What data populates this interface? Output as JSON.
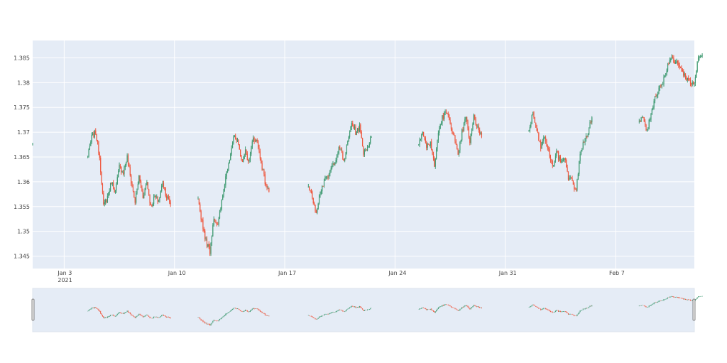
{
  "chart_data": {
    "type": "candlestick",
    "title": "",
    "xlabel": "",
    "ylabel": "",
    "ylim": [
      1.3425,
      1.3885
    ],
    "x_range": [
      "2021-01-01",
      "2021-02-12"
    ],
    "y_ticks": [
      "1.345",
      "1.35",
      "1.355",
      "1.36",
      "1.365",
      "1.37",
      "1.375",
      "1.38",
      "1.385"
    ],
    "y_tick_values": [
      1.345,
      1.35,
      1.355,
      1.36,
      1.365,
      1.37,
      1.375,
      1.38,
      1.385
    ],
    "x_ticks": [
      {
        "date": "2021-01-03",
        "label": "Jan 3",
        "sublabel": "2021"
      },
      {
        "date": "2021-01-10",
        "label": "Jan 10",
        "sublabel": ""
      },
      {
        "date": "2021-01-17",
        "label": "Jan 17",
        "sublabel": ""
      },
      {
        "date": "2021-01-24",
        "label": "Jan 24",
        "sublabel": ""
      },
      {
        "date": "2021-01-31",
        "label": "Jan 31",
        "sublabel": ""
      },
      {
        "date": "2021-02-07",
        "label": "Feb 7",
        "sublabel": ""
      }
    ],
    "increasing_color": "#3D9970",
    "decreasing_color": "#EF553B",
    "plot_bg": "#E5ECF6",
    "grid": true,
    "rangeslider": true,
    "series": [
      {
        "segment": 0,
        "points": [
          [
            "2021-01-01 00:00",
            1.3675
          ]
        ]
      },
      {
        "segment": 1,
        "points": [
          [
            "2021-01-04 12:00",
            1.365
          ],
          [
            "2021-01-04 18:00",
            1.369
          ],
          [
            "2021-01-05 00:00",
            1.37
          ],
          [
            "2021-01-05 06:00",
            1.365
          ],
          [
            "2021-01-05 12:00",
            1.355
          ],
          [
            "2021-01-05 18:00",
            1.357
          ],
          [
            "2021-01-06 00:00",
            1.36
          ],
          [
            "2021-01-06 06:00",
            1.358
          ],
          [
            "2021-01-06 12:00",
            1.363
          ],
          [
            "2021-01-06 18:00",
            1.362
          ],
          [
            "2021-01-07 00:00",
            1.365
          ],
          [
            "2021-01-07 06:00",
            1.36
          ],
          [
            "2021-01-07 12:00",
            1.356
          ],
          [
            "2021-01-07 18:00",
            1.361
          ],
          [
            "2021-01-08 00:00",
            1.357
          ],
          [
            "2021-01-08 06:00",
            1.36
          ],
          [
            "2021-01-08 12:00",
            1.355
          ],
          [
            "2021-01-08 18:00",
            1.357
          ],
          [
            "2021-01-09 00:00",
            1.356
          ],
          [
            "2021-01-09 06:00",
            1.36
          ],
          [
            "2021-01-09 12:00",
            1.357
          ],
          [
            "2021-01-09 18:00",
            1.3555
          ]
        ]
      },
      {
        "segment": 2,
        "points": [
          [
            "2021-01-11 12:00",
            1.356
          ],
          [
            "2021-01-11 18:00",
            1.352
          ],
          [
            "2021-01-12 00:00",
            1.348
          ],
          [
            "2021-01-12 06:00",
            1.346
          ],
          [
            "2021-01-12 12:00",
            1.353
          ],
          [
            "2021-01-12 18:00",
            1.351
          ],
          [
            "2021-01-13 00:00",
            1.356
          ],
          [
            "2021-01-13 06:00",
            1.361
          ],
          [
            "2021-01-13 12:00",
            1.365
          ],
          [
            "2021-01-13 18:00",
            1.369
          ],
          [
            "2021-01-14 00:00",
            1.368
          ],
          [
            "2021-01-14 06:00",
            1.364
          ],
          [
            "2021-01-14 12:00",
            1.366
          ],
          [
            "2021-01-14 18:00",
            1.364
          ],
          [
            "2021-01-15 00:00",
            1.369
          ],
          [
            "2021-01-15 06:00",
            1.368
          ],
          [
            "2021-01-15 12:00",
            1.364
          ],
          [
            "2021-01-15 18:00",
            1.36
          ],
          [
            "2021-01-16 00:00",
            1.358
          ]
        ]
      },
      {
        "segment": 3,
        "points": [
          [
            "2021-01-18 12:00",
            1.359
          ],
          [
            "2021-01-18 18:00",
            1.357
          ],
          [
            "2021-01-19 00:00",
            1.354
          ],
          [
            "2021-01-19 06:00",
            1.358
          ],
          [
            "2021-01-19 12:00",
            1.36
          ],
          [
            "2021-01-19 18:00",
            1.361
          ],
          [
            "2021-01-20 00:00",
            1.363
          ],
          [
            "2021-01-20 06:00",
            1.365
          ],
          [
            "2021-01-20 12:00",
            1.367
          ],
          [
            "2021-01-20 18:00",
            1.364
          ],
          [
            "2021-01-21 00:00",
            1.368
          ],
          [
            "2021-01-21 06:00",
            1.372
          ],
          [
            "2021-01-21 12:00",
            1.37
          ],
          [
            "2021-01-21 18:00",
            1.371
          ],
          [
            "2021-01-22 00:00",
            1.366
          ],
          [
            "2021-01-22 06:00",
            1.367
          ],
          [
            "2021-01-22 12:00",
            1.369
          ]
        ]
      },
      {
        "segment": 4,
        "points": [
          [
            "2021-01-25 12:00",
            1.368
          ],
          [
            "2021-01-25 18:00",
            1.37
          ],
          [
            "2021-01-26 00:00",
            1.367
          ],
          [
            "2021-01-26 06:00",
            1.368
          ],
          [
            "2021-01-26 12:00",
            1.363
          ],
          [
            "2021-01-26 18:00",
            1.37
          ],
          [
            "2021-01-27 00:00",
            1.373
          ],
          [
            "2021-01-27 06:00",
            1.374
          ],
          [
            "2021-01-27 12:00",
            1.372
          ],
          [
            "2021-01-27 18:00",
            1.369
          ],
          [
            "2021-01-28 00:00",
            1.365
          ],
          [
            "2021-01-28 06:00",
            1.37
          ],
          [
            "2021-01-28 12:00",
            1.373
          ],
          [
            "2021-01-28 18:00",
            1.368
          ],
          [
            "2021-01-29 00:00",
            1.373
          ],
          [
            "2021-01-29 06:00",
            1.371
          ],
          [
            "2021-01-29 12:00",
            1.369
          ]
        ]
      },
      {
        "segment": 5,
        "points": [
          [
            "2021-02-01 12:00",
            1.37
          ],
          [
            "2021-02-01 18:00",
            1.374
          ],
          [
            "2021-02-02 00:00",
            1.37
          ],
          [
            "2021-02-02 06:00",
            1.367
          ],
          [
            "2021-02-02 12:00",
            1.369
          ],
          [
            "2021-02-02 18:00",
            1.366
          ],
          [
            "2021-02-03 00:00",
            1.363
          ],
          [
            "2021-02-03 06:00",
            1.366
          ],
          [
            "2021-02-03 12:00",
            1.364
          ],
          [
            "2021-02-03 18:00",
            1.365
          ],
          [
            "2021-02-04 00:00",
            1.361
          ],
          [
            "2021-02-04 06:00",
            1.36
          ],
          [
            "2021-02-04 12:00",
            1.358
          ],
          [
            "2021-02-04 18:00",
            1.366
          ],
          [
            "2021-02-05 00:00",
            1.368
          ],
          [
            "2021-02-05 06:00",
            1.37
          ],
          [
            "2021-02-05 12:00",
            1.373
          ]
        ]
      },
      {
        "segment": 6,
        "points": [
          [
            "2021-02-08 12:00",
            1.372
          ],
          [
            "2021-02-08 18:00",
            1.373
          ],
          [
            "2021-02-09 00:00",
            1.37
          ],
          [
            "2021-02-09 06:00",
            1.374
          ],
          [
            "2021-02-09 12:00",
            1.377
          ],
          [
            "2021-02-09 18:00",
            1.379
          ],
          [
            "2021-02-10 00:00",
            1.38
          ],
          [
            "2021-02-10 06:00",
            1.383
          ],
          [
            "2021-02-10 12:00",
            1.385
          ],
          [
            "2021-02-10 18:00",
            1.384
          ],
          [
            "2021-02-11 00:00",
            1.384
          ],
          [
            "2021-02-11 06:00",
            1.382
          ],
          [
            "2021-02-11 12:00",
            1.381
          ],
          [
            "2021-02-11 18:00",
            1.38
          ],
          [
            "2021-02-12 00:00",
            1.38
          ],
          [
            "2021-02-12 06:00",
            1.385
          ],
          [
            "2021-02-12 12:00",
            1.3855
          ]
        ]
      }
    ]
  }
}
